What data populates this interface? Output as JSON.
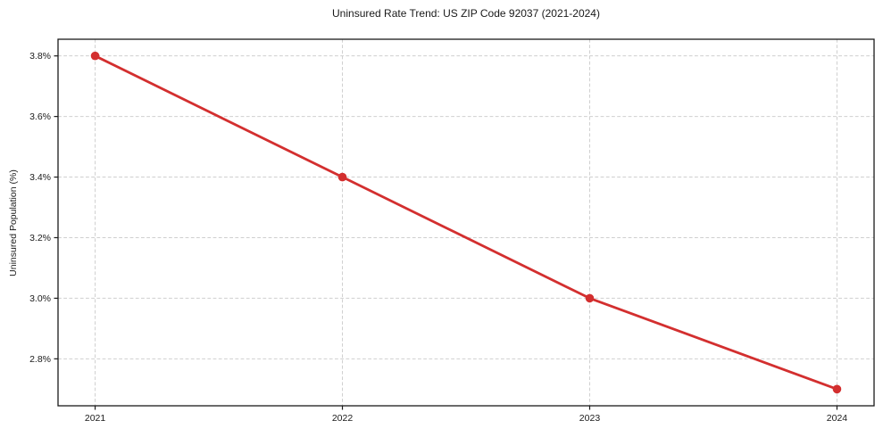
{
  "figure": {
    "background": "#ffffff"
  },
  "chart_data": {
    "type": "line",
    "title": "Uninsured Rate Trend: US ZIP Code 92037 (2021-2024)",
    "xlabel": "",
    "ylabel": "Uninsured Population (%)",
    "x": [
      2021,
      2022,
      2023,
      2024
    ],
    "x_tick_labels": [
      "2021",
      "2022",
      "2023",
      "2024"
    ],
    "series": [
      {
        "name": "Uninsured rate",
        "values": [
          3.8,
          3.4,
          3.0,
          2.7
        ]
      }
    ],
    "y_ticks": [
      2.8,
      3.0,
      3.2,
      3.4,
      3.6,
      3.8
    ],
    "y_tick_labels": [
      "2.8%",
      "3.0%",
      "3.2%",
      "3.4%",
      "3.6%",
      "3.8%"
    ],
    "xlim": [
      2020.85,
      2024.15
    ],
    "ylim": [
      2.645,
      3.855
    ],
    "grid": true,
    "grid_style": "dashed",
    "legend": "none",
    "marker": "circle",
    "colors": {
      "line": "#d32f2f",
      "marker": "#d32f2f",
      "grid": "#cfcfcf",
      "axis": "#1a1a1a",
      "text": "#1a1a1a",
      "background": "#ffffff"
    }
  }
}
